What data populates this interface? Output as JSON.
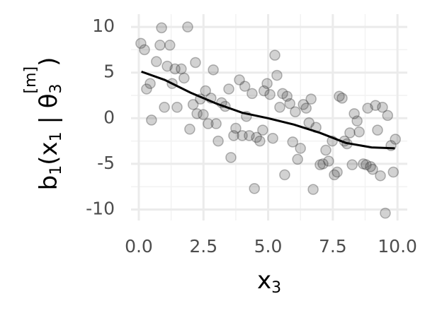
{
  "chart_data": {
    "type": "scatter",
    "xlabel_parts": [
      "x",
      "3"
    ],
    "ylabel_parts": [
      "b",
      "1",
      "(x",
      "1",
      " | θ",
      "3",
      "[m]",
      ")"
    ],
    "xlim": [
      -0.3,
      10.38
    ],
    "ylim": [
      -11.2,
      11.4
    ],
    "xticks": [
      {
        "value": 0,
        "label": "0.0"
      },
      {
        "value": 2.5,
        "label": "2.5"
      },
      {
        "value": 5,
        "label": "5.0"
      },
      {
        "value": 7.5,
        "label": "7.5"
      },
      {
        "value": 10,
        "label": "10.0"
      }
    ],
    "yticks": [
      -10,
      -5,
      0,
      5,
      10
    ],
    "grid": true,
    "series": [
      {
        "name": "points",
        "color": "#333333",
        "x": [
          0.08,
          0.22,
          0.3,
          0.44,
          0.49,
          0.68,
          0.88,
          0.82,
          0.99,
          1.1,
          1.2,
          1.29,
          1.4,
          1.48,
          1.64,
          1.75,
          1.89,
          1.97,
          2.1,
          2.19,
          2.25,
          2.38,
          2.49,
          2.58,
          2.68,
          2.79,
          2.88,
          2.99,
          3.07,
          3.2,
          3.34,
          3.48,
          3.56,
          3.67,
          3.75,
          3.89,
          4.0,
          4.1,
          4.16,
          4.27,
          4.38,
          4.47,
          4.55,
          4.68,
          4.79,
          4.84,
          4.96,
          5.07,
          5.18,
          5.26,
          5.34,
          5.45,
          5.56,
          5.64,
          5.73,
          5.84,
          5.95,
          6.05,
          6.14,
          6.25,
          6.36,
          6.47,
          6.58,
          6.66,
          6.74,
          6.85,
          7.01,
          7.12,
          7.23,
          7.34,
          7.48,
          7.56,
          7.67,
          7.75,
          7.86,
          7.95,
          8.05,
          8.16,
          8.25,
          8.33,
          8.44,
          8.52,
          8.68,
          8.79,
          8.85,
          8.96,
          9.04,
          9.15,
          9.23,
          9.34,
          9.42,
          9.53,
          9.62,
          9.75,
          9.84,
          9.92
        ],
        "values": [
          8.2,
          7.5,
          3.2,
          3.8,
          -0.2,
          6.2,
          9.9,
          8.0,
          1.2,
          5.7,
          8.0,
          3.8,
          5.4,
          1.2,
          5.4,
          4.4,
          10.0,
          -1.2,
          1.5,
          6.1,
          0.5,
          2.1,
          0.4,
          3.0,
          -0.6,
          2.2,
          5.3,
          -0.6,
          -2.5,
          1.7,
          1.3,
          3.2,
          -4.3,
          -1.9,
          -1.1,
          4.2,
          -1.9,
          3.5,
          0.2,
          -1.9,
          2.7,
          -7.7,
          -2.1,
          -2.5,
          -1.3,
          3.0,
          3.8,
          2.6,
          -2.2,
          6.9,
          4.7,
          1.2,
          2.7,
          -6.2,
          2.4,
          1.6,
          -2.6,
          0.7,
          -4.5,
          -3.3,
          1.5,
          1.1,
          -0.5,
          2.1,
          -7.8,
          -1.0,
          -5.1,
          -5.0,
          -3.5,
          -4.7,
          -2.5,
          -6.2,
          -5.9,
          2.4,
          2.2,
          -2.5,
          -2.8,
          -1.6,
          -5.1,
          0.5,
          -0.3,
          -1.5,
          -5.0,
          -5.1,
          1.1,
          -5.3,
          -5.6,
          1.4,
          -1.3,
          -6.3,
          1.2,
          -10.4,
          0.3,
          -3.0,
          -5.9,
          -2.3
        ]
      },
      {
        "name": "smooth",
        "color": "#000000",
        "kind": "line",
        "x": [
          0.1,
          1,
          2,
          3,
          4,
          5,
          6,
          7,
          8,
          9,
          9.9
        ],
        "values": [
          5.1,
          4.2,
          2.8,
          1.6,
          0.6,
          0,
          -0.7,
          -1.6,
          -2.7,
          -3.2,
          -3.3
        ]
      }
    ]
  }
}
